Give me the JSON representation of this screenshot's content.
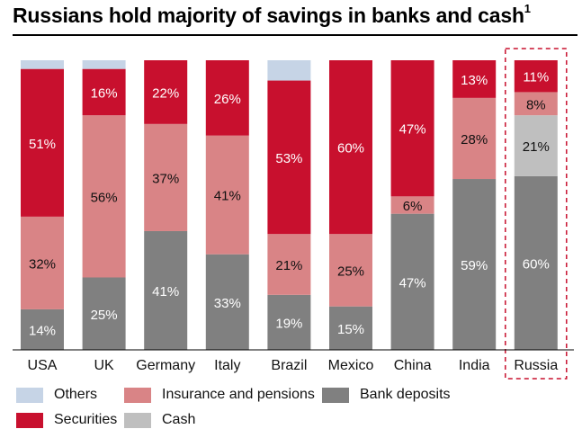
{
  "title": "Russians hold majority of savings in banks and cash",
  "title_footnote": "1",
  "colors": {
    "Others": "#c6d4e6",
    "Securities": "#c8102e",
    "Insurance and pensions": "#d98486",
    "Cash": "#bfbfbf",
    "Bank deposits": "#808080"
  },
  "legend": [
    {
      "label": "Others",
      "key": "Others"
    },
    {
      "label": "Insurance and pensions",
      "key": "Insurance and pensions"
    },
    {
      "label": "Bank deposits",
      "key": "Bank deposits"
    },
    {
      "label": "Securities",
      "key": "Securities"
    },
    {
      "label": "Cash",
      "key": "Cash"
    }
  ],
  "chart_data": {
    "type": "bar",
    "stacked": true,
    "normalized_percent": true,
    "categories": [
      "USA",
      "UK",
      "Germany",
      "Italy",
      "Brazil",
      "Mexico",
      "China",
      "India",
      "Russia"
    ],
    "highlighted_category": "Russia",
    "series": [
      {
        "name": "Bank deposits",
        "values": [
          14,
          25,
          41,
          33,
          19,
          15,
          47,
          59,
          60
        ]
      },
      {
        "name": "Cash",
        "values": [
          0,
          0,
          0,
          0,
          0,
          0,
          0,
          0,
          21
        ]
      },
      {
        "name": "Insurance and pensions",
        "values": [
          32,
          56,
          37,
          41,
          21,
          25,
          6,
          28,
          8
        ]
      },
      {
        "name": "Securities",
        "values": [
          51,
          16,
          22,
          26,
          53,
          60,
          47,
          13,
          11
        ]
      },
      {
        "name": "Others",
        "values": [
          3,
          3,
          0,
          0,
          7,
          0,
          0,
          0,
          0
        ]
      }
    ],
    "data_labels": [
      {
        "category": "USA",
        "labels": [
          "14%",
          "",
          "32%",
          "51%",
          ""
        ]
      },
      {
        "category": "UK",
        "labels": [
          "25%",
          "",
          "56%",
          "16%",
          ""
        ]
      },
      {
        "category": "Germany",
        "labels": [
          "41%",
          "",
          "37%",
          "22%",
          ""
        ]
      },
      {
        "category": "Italy",
        "labels": [
          "33%",
          "",
          "41%",
          "26%",
          ""
        ]
      },
      {
        "category": "Brazil",
        "labels": [
          "19%",
          "",
          "21%",
          "53%",
          ""
        ]
      },
      {
        "category": "Mexico",
        "labels": [
          "15%",
          "",
          "25%",
          "60%",
          ""
        ]
      },
      {
        "category": "China",
        "labels": [
          "47%",
          "",
          "6%",
          "47%",
          ""
        ]
      },
      {
        "category": "India",
        "labels": [
          "59%",
          "",
          "28%",
          "13%",
          ""
        ]
      },
      {
        "category": "Russia",
        "labels": [
          "60%",
          "21%",
          "8%",
          "11%",
          ""
        ]
      }
    ]
  }
}
